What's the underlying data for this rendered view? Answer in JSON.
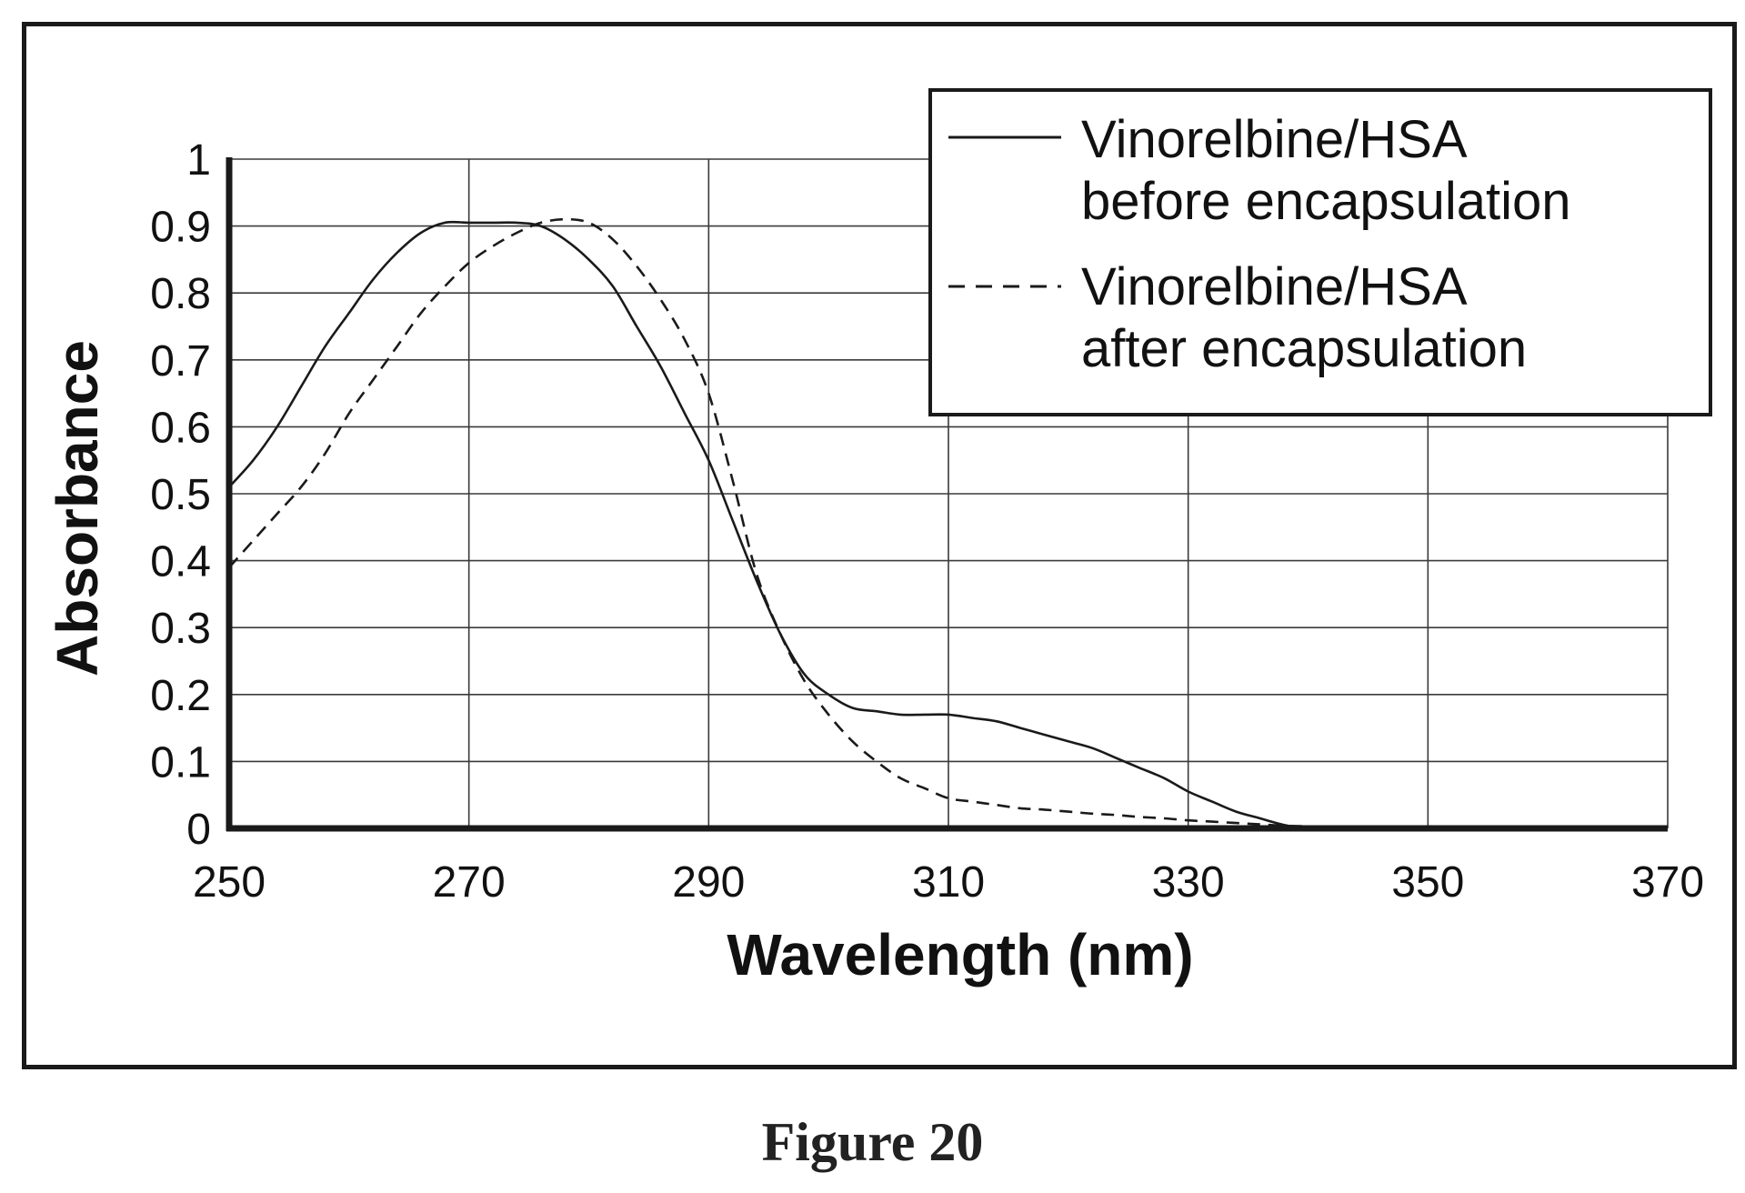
{
  "figure_caption": "Figure 20",
  "colors": {
    "line": "#1a1a1a",
    "grid": "#3a3a3a",
    "axis": "#1a1a1a",
    "background": "#ffffff"
  },
  "chart_data": {
    "type": "line",
    "title": "",
    "xlabel": "Wavelength (nm)",
    "ylabel": "Absorbance",
    "xlim": [
      250,
      370
    ],
    "ylim": [
      0,
      1
    ],
    "x_ticks": [
      250,
      270,
      290,
      310,
      330,
      350,
      370
    ],
    "y_ticks": [
      0,
      0.1,
      0.2,
      0.3,
      0.4,
      0.5,
      0.6,
      0.7,
      0.8,
      0.9,
      1
    ],
    "grid": true,
    "legend_position": "top-right",
    "series": [
      {
        "name": "Vinorelbine/HSA before encapsulation",
        "style": "solid",
        "x": [
          250,
          252,
          254,
          256,
          258,
          260,
          262,
          264,
          266,
          268,
          270,
          272,
          274,
          276,
          278,
          280,
          282,
          284,
          286,
          288,
          290,
          292,
          294,
          296,
          298,
          300,
          302,
          304,
          306,
          308,
          310,
          312,
          314,
          316,
          318,
          320,
          322,
          324,
          326,
          328,
          330,
          332,
          334,
          336,
          338,
          340,
          342,
          346,
          350,
          360,
          370
        ],
        "y": [
          0.51,
          0.55,
          0.6,
          0.66,
          0.72,
          0.77,
          0.82,
          0.86,
          0.89,
          0.905,
          0.905,
          0.905,
          0.905,
          0.9,
          0.88,
          0.85,
          0.81,
          0.75,
          0.69,
          0.62,
          0.55,
          0.46,
          0.37,
          0.29,
          0.23,
          0.2,
          0.18,
          0.175,
          0.17,
          0.17,
          0.17,
          0.165,
          0.16,
          0.15,
          0.14,
          0.13,
          0.12,
          0.105,
          0.09,
          0.075,
          0.055,
          0.04,
          0.025,
          0.015,
          0.005,
          0.0,
          0.0,
          0.0,
          0.0,
          0.0,
          0.0
        ]
      },
      {
        "name": "Vinorelbine/HSA after encapsulation",
        "style": "dashed",
        "x": [
          250,
          252,
          254,
          256,
          258,
          260,
          262,
          264,
          266,
          268,
          270,
          272,
          274,
          276,
          278,
          280,
          282,
          284,
          286,
          288,
          290,
          292,
          294,
          296,
          298,
          300,
          302,
          304,
          306,
          308,
          310,
          312,
          314,
          316,
          318,
          320,
          322,
          324,
          326,
          328,
          330,
          332,
          334,
          336,
          338,
          340,
          342,
          346,
          350,
          360,
          370
        ],
        "y": [
          0.39,
          0.43,
          0.47,
          0.51,
          0.56,
          0.62,
          0.67,
          0.72,
          0.77,
          0.81,
          0.845,
          0.87,
          0.89,
          0.905,
          0.91,
          0.905,
          0.88,
          0.84,
          0.79,
          0.73,
          0.65,
          0.52,
          0.38,
          0.29,
          0.22,
          0.17,
          0.13,
          0.1,
          0.075,
          0.06,
          0.045,
          0.04,
          0.035,
          0.03,
          0.028,
          0.025,
          0.022,
          0.02,
          0.017,
          0.015,
          0.012,
          0.01,
          0.008,
          0.006,
          0.004,
          0.003,
          0.002,
          0.0,
          0.0,
          0.0,
          0.0
        ]
      }
    ]
  }
}
